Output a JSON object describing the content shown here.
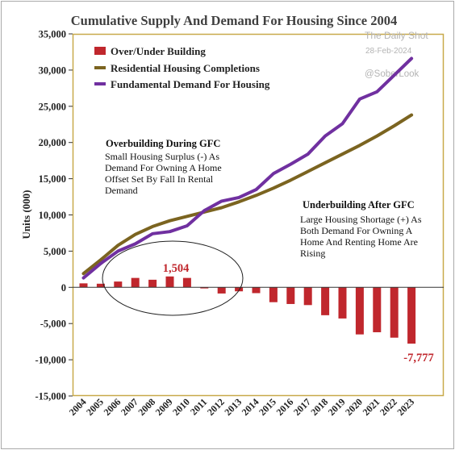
{
  "chart_data": {
    "type": "bar+line",
    "title": "Cumulative Supply And Demand For Housing Since 2004",
    "ylabel": "Units (000)",
    "ylim": [
      -15000,
      35000
    ],
    "yticks": [
      -15000,
      -10000,
      -5000,
      0,
      5000,
      10000,
      15000,
      20000,
      25000,
      30000,
      35000
    ],
    "ytick_labels": [
      "-15,000",
      "-10,000",
      "-5,000",
      "0",
      "5,000",
      "10,000",
      "15,000",
      "20,000",
      "25,000",
      "30,000",
      "35,000"
    ],
    "categories": [
      "2004",
      "2005",
      "2006",
      "2007",
      "2008",
      "2009",
      "2010",
      "2011",
      "2012",
      "2013",
      "2014",
      "2015",
      "2016",
      "2017",
      "2018",
      "2019",
      "2020",
      "2021",
      "2022",
      "2023"
    ],
    "series": [
      {
        "name": "Over/Under Building",
        "kind": "bar",
        "color": "#C0272D",
        "values": [
          550,
          500,
          800,
          1300,
          1050,
          1504,
          1300,
          -150,
          -850,
          -550,
          -800,
          -2050,
          -2300,
          -2450,
          -3850,
          -4300,
          -6500,
          -6200,
          -6950,
          -7777
        ]
      },
      {
        "name": "Residential Housing Completions",
        "kind": "line",
        "color": "#7B6420",
        "values": [
          1900,
          3800,
          5800,
          7300,
          8400,
          9200,
          9800,
          10400,
          11000,
          11800,
          12700,
          13700,
          14800,
          16000,
          17200,
          18400,
          19600,
          20900,
          22300,
          23800
        ]
      },
      {
        "name": "Fundamental Demand For Housing",
        "kind": "line",
        "color": "#7030A0",
        "values": [
          1300,
          3300,
          5000,
          6000,
          7400,
          7700,
          8500,
          10600,
          11900,
          12400,
          13500,
          15700,
          17000,
          18400,
          20900,
          22600,
          26000,
          27000,
          29300,
          31600
        ]
      }
    ],
    "legend_position": "top-left",
    "grid": false,
    "annotations": {
      "gfc_title": "Overbuilding During GFC",
      "gfc_lines": [
        "Small Housing Surplus (-) As",
        "Demand For Owning A Home",
        "Offset Set By Fall In Rental",
        "Demand"
      ],
      "after_title": "Underbuilding After GFC",
      "after_lines": [
        "Large Housing Shortage  (+) As",
        "Both Demand For Owning A",
        "Home And Renting Home Are",
        "Rising"
      ],
      "peak_label": "1,504",
      "trough_label": "-7,777"
    },
    "watermark": {
      "source": "The Daily Shot",
      "date": "28-Feb-2024",
      "handle": "@SoberLook"
    }
  }
}
